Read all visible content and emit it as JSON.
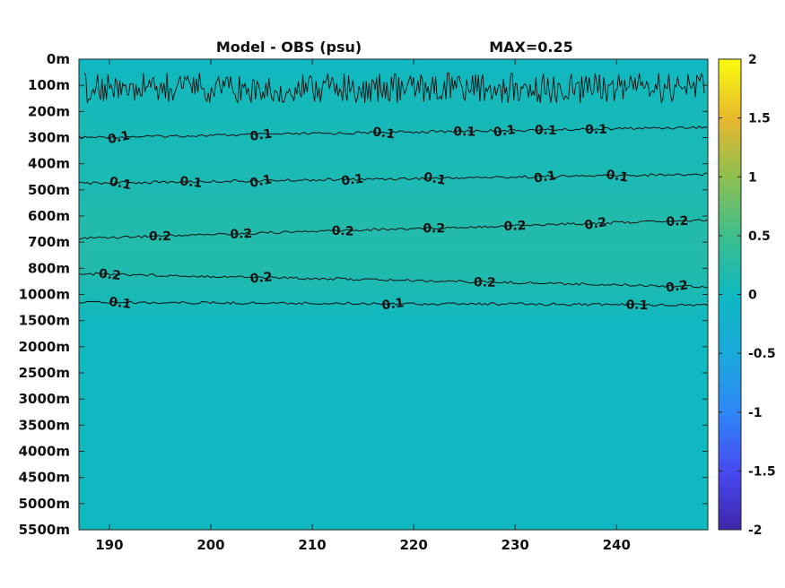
{
  "chart_data": {
    "type": "heatmap",
    "title": "Model - OBS (psu)",
    "max_label": "MAX=0.25",
    "x_ticks": [
      190,
      200,
      210,
      220,
      230,
      240
    ],
    "xlim": [
      187,
      249
    ],
    "y_ticks": [
      "0m",
      "100m",
      "200m",
      "300m",
      "400m",
      "500m",
      "600m",
      "700m",
      "800m",
      "1000m",
      "1500m",
      "2000m",
      "2500m",
      "3000m",
      "3500m",
      "4000m",
      "4500m",
      "5000m",
      "5500m"
    ],
    "colorbar": {
      "min": -2,
      "max": 2,
      "ticks": [
        "2",
        "1.5",
        "1",
        "0.5",
        "0",
        "-0.5",
        "-1",
        "-1.5",
        "-2"
      ]
    },
    "depth_profile": [
      {
        "depth_index": 0,
        "value": 0.0
      },
      {
        "depth_index": 1,
        "value": 0.05
      },
      {
        "depth_index": 2,
        "value": 0.08
      },
      {
        "depth_index": 3,
        "value": 0.1
      },
      {
        "depth_index": 4,
        "value": 0.12
      },
      {
        "depth_index": 5,
        "value": 0.15
      },
      {
        "depth_index": 6,
        "value": 0.2
      },
      {
        "depth_index": 7,
        "value": 0.22
      },
      {
        "depth_index": 8,
        "value": 0.2
      },
      {
        "depth_index": 9,
        "value": 0.12
      },
      {
        "depth_index": 10,
        "value": 0.01
      },
      {
        "depth_index": 18,
        "value": 0.01
      }
    ],
    "contours": [
      {
        "level": "0.1",
        "depth_index": [
          3.0,
          2.6
        ],
        "label_x": [
          191,
          205,
          217,
          225,
          229,
          233,
          238
        ]
      },
      {
        "level": "0.1",
        "depth_index": [
          4.75,
          4.4
        ],
        "label_x": [
          191,
          198,
          205,
          214,
          222,
          233,
          240
        ]
      },
      {
        "level": "0.2",
        "depth_index": [
          6.85,
          6.15
        ],
        "label_x": [
          195,
          203,
          213,
          222,
          230,
          238,
          246
        ]
      },
      {
        "level": "0.2",
        "depth_index": [
          8.2,
          8.7
        ],
        "label_x": [
          190,
          205,
          227,
          246
        ]
      },
      {
        "level": "0.1",
        "depth_index": [
          9.3,
          9.4
        ],
        "label_x": [
          191,
          218,
          242
        ]
      }
    ],
    "inline_labels": [
      "0.1",
      "0.2"
    ]
  }
}
